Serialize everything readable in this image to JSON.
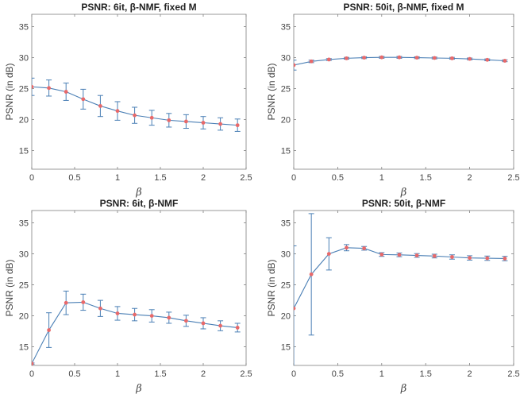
{
  "chart_data": [
    {
      "type": "line",
      "title": "PSNR: 6it, β-NMF, fixed M",
      "xlabel": "β",
      "ylabel": "PSNR (in dB)",
      "xlim": [
        0,
        2.5
      ],
      "ylim": [
        12,
        37
      ],
      "xticks": [
        0,
        0.5,
        1,
        1.5,
        2,
        2.5
      ],
      "xtick_labels": [
        "0",
        "0.5",
        "1",
        "1.5",
        "2",
        "2.5"
      ],
      "yticks": [
        15,
        20,
        25,
        30,
        35
      ],
      "ytick_labels": [
        "15",
        "20",
        "25",
        "30",
        "35"
      ],
      "x": [
        0,
        0.2,
        0.4,
        0.6,
        0.8,
        1.0,
        1.2,
        1.4,
        1.6,
        1.8,
        2.0,
        2.2,
        2.4
      ],
      "y": [
        25.3,
        25.1,
        24.5,
        23.3,
        22.2,
        21.4,
        20.7,
        20.3,
        19.9,
        19.7,
        19.5,
        19.3,
        19.1
      ],
      "err": [
        1.4,
        1.3,
        1.4,
        1.6,
        1.7,
        1.5,
        1.3,
        1.2,
        1.1,
        1.1,
        1.0,
        1.0,
        1.0
      ],
      "grid": false,
      "line_color": "#4a7fb5",
      "marker_color": "#e8696a"
    },
    {
      "type": "line",
      "title": "PSNR: 50it, β-NMF, fixed M",
      "xlabel": "β",
      "ylabel": "PSNR (in dB)",
      "xlim": [
        0,
        2.5
      ],
      "ylim": [
        12,
        37
      ],
      "xticks": [
        0,
        0.5,
        1,
        1.5,
        2,
        2.5
      ],
      "xtick_labels": [
        "0",
        "0.5",
        "1",
        "1.5",
        "2",
        "2.5"
      ],
      "yticks": [
        15,
        20,
        25,
        30,
        35
      ],
      "ytick_labels": [
        "15",
        "20",
        "25",
        "30",
        "35"
      ],
      "x": [
        0,
        0.2,
        0.4,
        0.6,
        0.8,
        1.0,
        1.2,
        1.4,
        1.6,
        1.8,
        2.0,
        2.2,
        2.4
      ],
      "y": [
        28.8,
        29.4,
        29.7,
        29.9,
        30.0,
        30.05,
        30.05,
        30.0,
        29.95,
        29.9,
        29.8,
        29.65,
        29.5
      ],
      "err": [
        0.8,
        0.2,
        0.15,
        0.15,
        0.15,
        0.15,
        0.15,
        0.15,
        0.15,
        0.15,
        0.15,
        0.15,
        0.15
      ],
      "grid": false,
      "line_color": "#4a7fb5",
      "marker_color": "#e8696a"
    },
    {
      "type": "line",
      "title": "PSNR: 6it, β-NMF",
      "xlabel": "β",
      "ylabel": "PSNR (in dB)",
      "xlim": [
        0,
        2.5
      ],
      "ylim": [
        12,
        37
      ],
      "xticks": [
        0,
        0.5,
        1,
        1.5,
        2,
        2.5
      ],
      "xtick_labels": [
        "0",
        "0.5",
        "1",
        "1.5",
        "2",
        "2.5"
      ],
      "yticks": [
        15,
        20,
        25,
        30,
        35
      ],
      "ytick_labels": [
        "15",
        "20",
        "25",
        "30",
        "35"
      ],
      "x": [
        0,
        0.2,
        0.4,
        0.6,
        0.8,
        1.0,
        1.2,
        1.4,
        1.6,
        1.8,
        2.0,
        2.2,
        2.4
      ],
      "y": [
        12.3,
        17.7,
        22.1,
        22.2,
        21.2,
        20.4,
        20.2,
        20.0,
        19.7,
        19.2,
        18.8,
        18.4,
        18.1
      ],
      "err": [
        0.1,
        2.8,
        1.9,
        1.3,
        1.3,
        1.1,
        1.0,
        1.0,
        0.9,
        0.9,
        0.9,
        0.8,
        0.7
      ],
      "grid": false,
      "line_color": "#4a7fb5",
      "marker_color": "#e8696a"
    },
    {
      "type": "line",
      "title": "PSNR: 50it, β-NMF",
      "xlabel": "β",
      "ylabel": "PSNR (in dB)",
      "xlim": [
        0,
        2.5
      ],
      "ylim": [
        12,
        37
      ],
      "xticks": [
        0,
        0.5,
        1,
        1.5,
        2,
        2.5
      ],
      "xtick_labels": [
        "0",
        "0.5",
        "1",
        "1.5",
        "2",
        "2.5"
      ],
      "yticks": [
        15,
        20,
        25,
        30,
        35
      ],
      "ytick_labels": [
        "15",
        "20",
        "25",
        "30",
        "35"
      ],
      "x": [
        0,
        0.2,
        0.4,
        0.6,
        0.8,
        1.0,
        1.2,
        1.4,
        1.6,
        1.8,
        2.0,
        2.2,
        2.4
      ],
      "y": [
        21.2,
        26.7,
        30.0,
        31.0,
        30.9,
        29.9,
        29.85,
        29.75,
        29.65,
        29.5,
        29.35,
        29.3,
        29.25
      ],
      "err": [
        10.1,
        9.8,
        2.6,
        0.5,
        0.3,
        0.3,
        0.3,
        0.3,
        0.3,
        0.35,
        0.35,
        0.35,
        0.35
      ],
      "grid": false,
      "line_color": "#4a7fb5",
      "marker_color": "#e8696a"
    }
  ]
}
